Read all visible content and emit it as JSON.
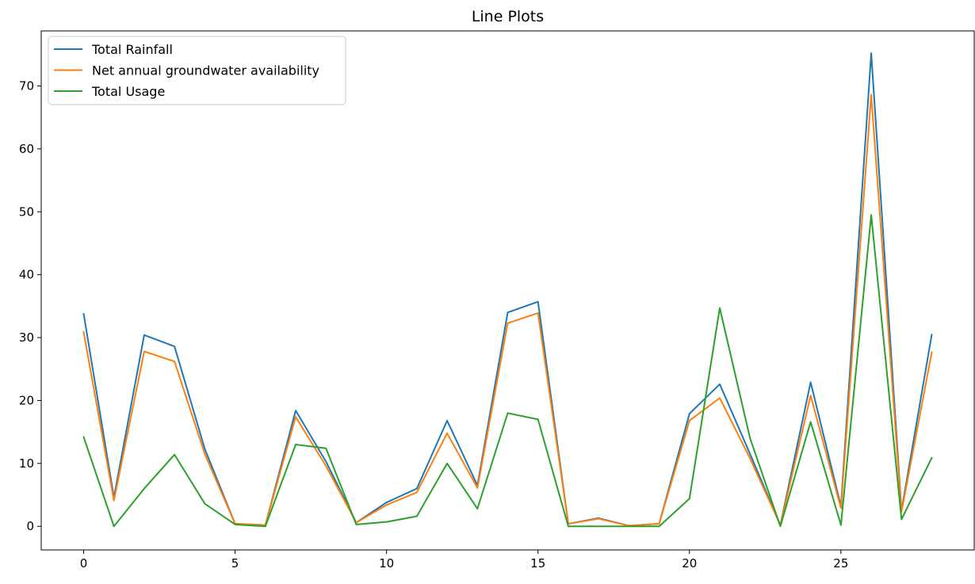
{
  "chart_data": {
    "type": "line",
    "title": "Line Plots",
    "xlabel": "",
    "ylabel": "",
    "xlim": [
      -1.4,
      29.4
    ],
    "ylim": [
      -3.75,
      78.75
    ],
    "xticks": [
      0,
      5,
      10,
      15,
      20,
      25
    ],
    "yticks": [
      0,
      10,
      20,
      30,
      40,
      50,
      60,
      70
    ],
    "grid": false,
    "legend_position": "top-left",
    "x": [
      0,
      1,
      2,
      3,
      4,
      5,
      6,
      7,
      8,
      9,
      10,
      11,
      12,
      13,
      14,
      15,
      16,
      17,
      18,
      19,
      20,
      21,
      22,
      23,
      24,
      25,
      26,
      27,
      28
    ],
    "series": [
      {
        "name": "Total Rainfall",
        "color": "#1f77b4",
        "values": [
          33.8,
          4.6,
          30.4,
          28.6,
          12.3,
          0.4,
          0.2,
          18.4,
          10.3,
          0.6,
          3.8,
          6.0,
          16.8,
          6.5,
          34.0,
          35.7,
          0.4,
          1.3,
          0.1,
          0.4,
          17.9,
          22.6,
          11.5,
          0.2,
          22.9,
          3.2,
          75.2,
          2.5,
          30.5
        ]
      },
      {
        "name": "Net annual groundwater availability",
        "color": "#ff7f0e",
        "values": [
          30.9,
          4.1,
          27.8,
          26.2,
          11.5,
          0.4,
          0.2,
          17.4,
          9.6,
          0.6,
          3.4,
          5.4,
          14.8,
          6.1,
          32.3,
          33.9,
          0.4,
          1.2,
          0.1,
          0.4,
          16.8,
          20.4,
          10.8,
          0.2,
          20.8,
          2.9,
          68.6,
          2.3,
          27.7
        ]
      },
      {
        "name": "Total Usage",
        "color": "#2ca02c",
        "values": [
          14.2,
          0.0,
          6.0,
          11.4,
          3.6,
          0.3,
          0.0,
          13.0,
          12.4,
          0.3,
          0.7,
          1.6,
          10.0,
          2.8,
          18.0,
          17.0,
          0.0,
          0.0,
          0.0,
          0.0,
          4.4,
          34.7,
          14.0,
          0.0,
          16.6,
          0.2,
          49.5,
          1.1,
          10.9
        ]
      }
    ]
  }
}
